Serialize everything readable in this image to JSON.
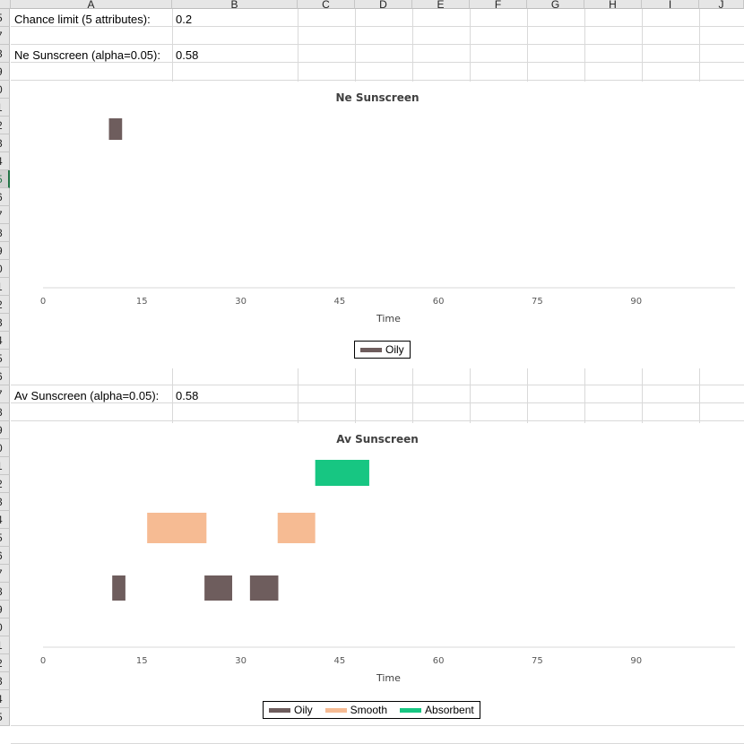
{
  "sheet": {
    "columns": [
      {
        "letter": "A"
      },
      {
        "letter": "B"
      },
      {
        "letter": "C"
      },
      {
        "letter": "D"
      },
      {
        "letter": "E"
      },
      {
        "letter": "F"
      },
      {
        "letter": "G"
      },
      {
        "letter": "H"
      },
      {
        "letter": "I"
      },
      {
        "letter": "J"
      }
    ],
    "rows": [
      "5",
      "7",
      "3",
      "9",
      "0",
      "1",
      "2",
      "3",
      "4",
      "5",
      "6",
      "7",
      "8",
      "9",
      "0",
      "1",
      "2",
      "3",
      "4",
      "5",
      "6",
      "7",
      "8",
      "9",
      "0",
      "1",
      "2",
      "3",
      "4",
      "5",
      "6",
      "7",
      "8",
      "9",
      "0",
      "1",
      "2",
      "3",
      "4",
      "5"
    ],
    "selected_row_index": 9,
    "cells": {
      "a5": "Chance limit (5 attributes):",
      "b5": "0.2",
      "a8": "Ne Sunscreen (alpha=0.05):",
      "b8": "0.58",
      "a27": "Av Sunscreen (alpha=0.05):",
      "b27": "0.58"
    }
  },
  "chart_data": [
    {
      "type": "bar",
      "title": "Ne Sunscreen",
      "xlabel": "Time",
      "xlim": [
        0,
        105
      ],
      "xticks": [
        "0",
        "15",
        "30",
        "45",
        "60",
        "75",
        "90"
      ],
      "series": [
        {
          "name": "Oily",
          "color": "#6e5d5d",
          "lane": 0,
          "segments": [
            [
              10,
              12
            ]
          ]
        }
      ],
      "legend": "bottom"
    },
    {
      "type": "bar",
      "title": "Av Sunscreen",
      "xlabel": "Time",
      "xlim": [
        0,
        105
      ],
      "xticks": [
        "0",
        "15",
        "30",
        "45",
        "60",
        "75",
        "90"
      ],
      "series": [
        {
          "name": "Oily",
          "color": "#6e5d5d",
          "lane": 0,
          "segments": [
            [
              10.5,
              12.5
            ],
            [
              24.5,
              28.7
            ],
            [
              31.4,
              35.7
            ]
          ]
        },
        {
          "name": "Smooth",
          "color": "#f6bb93",
          "lane": 1,
          "segments": [
            [
              15.8,
              24.8
            ],
            [
              35.6,
              41.3
            ]
          ]
        },
        {
          "name": "Absorbent",
          "color": "#17c682",
          "lane": 2,
          "segments": [
            [
              41.3,
              49.5
            ]
          ]
        }
      ],
      "legend": "bottom"
    }
  ]
}
